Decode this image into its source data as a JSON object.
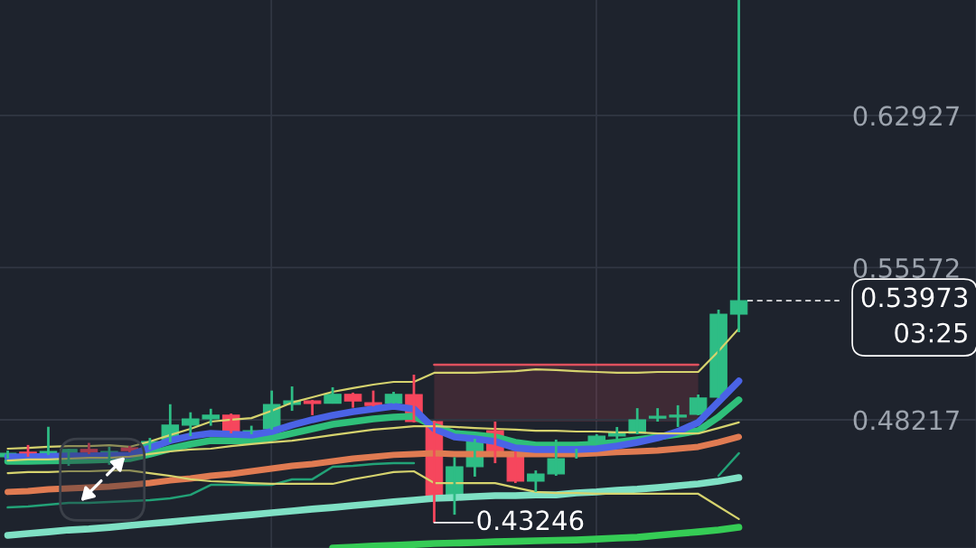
{
  "chart_data": {
    "type": "candlestick",
    "categories": [
      null,
      null,
      null,
      null,
      null,
      null,
      null,
      null,
      null,
      null,
      null,
      null,
      null,
      null,
      null,
      null,
      null,
      null,
      null,
      null,
      null,
      null,
      null,
      null,
      null,
      null,
      null,
      null,
      null,
      null,
      null,
      null,
      null,
      null,
      null,
      null,
      null
    ],
    "ohlc": [
      [
        0.4643,
        0.4673,
        0.4634,
        0.466
      ],
      [
        0.4665,
        0.47,
        0.4643,
        0.4647
      ],
      [
        0.4656,
        0.4788,
        0.4652,
        0.4669
      ],
      [
        0.4662,
        0.4682,
        0.4599,
        0.4679
      ],
      [
        0.4679,
        0.471,
        0.4656,
        0.4665
      ],
      [
        0.466,
        0.4691,
        0.4604,
        0.4669
      ],
      [
        0.4686,
        0.4695,
        0.4665,
        0.4673
      ],
      [
        0.4682,
        0.4734,
        0.4678,
        0.4717
      ],
      [
        0.4717,
        0.4897,
        0.4713,
        0.4796
      ],
      [
        0.4796,
        0.4858,
        0.4743,
        0.4826
      ],
      [
        0.4826,
        0.4875,
        0.4793,
        0.4844
      ],
      [
        0.4844,
        0.4852,
        0.4756,
        0.4761
      ],
      [
        0.4756,
        0.4793,
        0.4752,
        0.4769
      ],
      [
        0.4778,
        0.4963,
        0.4774,
        0.4896
      ],
      [
        0.4896,
        0.4983,
        0.4865,
        0.4913
      ],
      [
        0.4913,
        0.4918,
        0.4844,
        0.49
      ],
      [
        0.4902,
        0.4979,
        0.49,
        0.4945
      ],
      [
        0.4945,
        0.4953,
        0.488,
        0.4913
      ],
      [
        0.4904,
        0.4963,
        0.4887,
        0.4891
      ],
      [
        0.4902,
        0.4957,
        0.49,
        0.4945
      ],
      [
        0.4944,
        0.504,
        0.4809,
        0.4813
      ],
      [
        0.4813,
        0.4817,
        0.43246,
        0.4451
      ],
      [
        0.4451,
        0.4641,
        0.4363,
        0.4595
      ],
      [
        0.4595,
        0.473,
        0.4547,
        0.4726
      ],
      [
        0.4769,
        0.4813,
        0.4612,
        0.466
      ],
      [
        0.466,
        0.4669,
        0.4516,
        0.4525
      ],
      [
        0.4525,
        0.4577,
        0.4473,
        0.456
      ],
      [
        0.456,
        0.4726,
        0.4551,
        0.4634
      ],
      [
        0.4656,
        0.4682,
        0.4634,
        0.4673
      ],
      [
        0.4713,
        0.4752,
        0.4704,
        0.4743
      ],
      [
        0.4743,
        0.4787,
        0.4726,
        0.4761
      ],
      [
        0.4756,
        0.4878,
        0.4752,
        0.4822
      ],
      [
        0.483,
        0.4878,
        0.4813,
        0.4839
      ],
      [
        0.4835,
        0.4892,
        0.4787,
        0.4844
      ],
      [
        0.4848,
        0.4944,
        0.4844,
        0.4927
      ],
      [
        0.4931,
        0.5354,
        0.4927,
        0.5332
      ],
      [
        0.5332,
        0.6851,
        0.5245,
        0.53973
      ]
    ],
    "colors": [
      "#2ebd85",
      "#f6465d",
      "#2ebd85",
      "#2ebd85",
      "#f6465d",
      "#2ebd85",
      "#f6465d",
      "#2ebd85",
      "#2ebd85",
      "#2ebd85",
      "#2ebd85",
      "#f6465d",
      "#2ebd85",
      "#2ebd85",
      "#2ebd85",
      "#f6465d",
      "#2ebd85",
      "#f6465d",
      "#f6465d",
      "#2ebd85",
      "#f6465d",
      "#f6465d",
      "#2ebd85",
      "#2ebd85",
      "#f6465d",
      "#f6465d",
      "#2ebd85",
      "#2ebd85",
      "#2ebd85",
      "#2ebd85",
      "#2ebd85",
      "#2ebd85",
      "#2ebd85",
      "#2ebd85",
      "#2ebd85",
      "#2ebd85",
      "#2ebd85"
    ],
    "series": [
      {
        "type": "line",
        "color": "#7fe0c4",
        "values": [
          0.4263,
          0.4272,
          0.428,
          0.4289,
          0.4294,
          0.4302,
          0.4311,
          0.432,
          0.4328,
          0.4337,
          0.4346,
          0.4355,
          0.4363,
          0.4372,
          0.4381,
          0.439,
          0.4398,
          0.4407,
          0.4416,
          0.4425,
          0.4433,
          0.4442,
          0.4446,
          0.4451,
          0.4455,
          0.4455,
          0.4459,
          0.4459,
          0.4468,
          0.4473,
          0.4481,
          0.4486,
          0.4494,
          0.4503,
          0.4512,
          0.4525,
          0.4542
        ]
      },
      {
        "type": "line",
        "color": "#35cc55",
        "values": [
          null,
          null,
          null,
          null,
          null,
          null,
          null,
          null,
          null,
          null,
          null,
          null,
          null,
          null,
          null,
          null,
          0.4202,
          0.4206,
          0.4211,
          0.4215,
          0.4219,
          0.4224,
          0.4226,
          0.4228,
          0.4232,
          0.4234,
          0.4237,
          0.4239,
          0.4241,
          0.4245,
          0.425,
          0.4254,
          0.4263,
          0.4272,
          0.428,
          0.4289,
          0.4302
        ]
      },
      {
        "type": "line",
        "color": "#e07b52",
        "values": [
          0.4473,
          0.4477,
          0.4486,
          0.449,
          0.4494,
          0.4499,
          0.4507,
          0.4516,
          0.4529,
          0.4538,
          0.4551,
          0.456,
          0.4573,
          0.4586,
          0.4599,
          0.4608,
          0.4621,
          0.4634,
          0.4643,
          0.4652,
          0.4656,
          0.466,
          0.4656,
          0.4656,
          0.4656,
          0.4656,
          0.4656,
          0.4656,
          0.4656,
          0.466,
          0.4665,
          0.4669,
          0.4673,
          0.4682,
          0.4691,
          0.4713,
          0.4739
        ]
      },
      {
        "type": "line",
        "color": "#2fbf7a",
        "values": [
          0.4621,
          0.4621,
          0.4623,
          0.4625,
          0.4627,
          0.463,
          0.4634,
          0.4656,
          0.4682,
          0.4704,
          0.4721,
          0.4721,
          0.4721,
          0.4734,
          0.4756,
          0.4778,
          0.48,
          0.4813,
          0.4826,
          0.4835,
          0.4839,
          0.4791,
          0.4756,
          0.4748,
          0.4739,
          0.4713,
          0.4699,
          0.4699,
          0.4699,
          0.4704,
          0.4713,
          0.4726,
          0.4739,
          0.4752,
          0.4769,
          0.4835,
          0.4918
        ]
      },
      {
        "type": "line",
        "color": "#4a63e6",
        "values": [
          0.4643,
          0.4643,
          0.4645,
          0.4647,
          0.4647,
          0.4649,
          0.4651,
          0.4686,
          0.4721,
          0.4743,
          0.4756,
          0.4752,
          0.4748,
          0.4765,
          0.4796,
          0.4822,
          0.4844,
          0.4861,
          0.4874,
          0.4887,
          0.4874,
          0.4778,
          0.4739,
          0.473,
          0.4717,
          0.4686,
          0.4678,
          0.4678,
          0.4678,
          0.4682,
          0.4695,
          0.4713,
          0.4734,
          0.4765,
          0.4809,
          0.4909,
          0.5009
        ]
      },
      {
        "type": "line",
        "color": "#e0505e",
        "values": [
          null,
          null,
          null,
          null,
          null,
          null,
          null,
          null,
          null,
          null,
          null,
          null,
          null,
          null,
          null,
          null,
          null,
          null,
          null,
          null,
          null,
          0.5088,
          0.5088,
          0.5088,
          0.5088,
          0.5088,
          0.5088,
          0.5088,
          0.5088,
          0.5088,
          0.5088,
          0.5088,
          0.5088,
          0.5088,
          0.5088,
          null,
          null
        ],
        "lower": [
          null,
          null,
          null,
          null,
          null,
          null,
          null,
          null,
          null,
          null,
          null,
          null,
          null,
          null,
          null,
          null,
          null,
          null,
          null,
          null,
          null,
          0.4813,
          0.4813,
          0.4813,
          0.4813,
          0.4813,
          0.4813,
          0.4813,
          0.4813,
          0.4813,
          0.4813,
          0.4813,
          0.4813,
          0.4813,
          0.4813,
          null,
          null
        ],
        "upper": [
          null,
          null,
          null,
          null,
          null,
          null,
          null,
          null,
          null,
          null,
          null,
          null,
          null,
          null,
          null,
          null,
          null,
          null,
          null,
          null,
          null,
          0.5088,
          0.5088,
          0.5088,
          0.5088,
          0.5088,
          0.5088,
          0.5088,
          0.5088,
          0.5088,
          0.5088,
          0.5088,
          0.5088,
          0.5088,
          0.5088,
          null,
          null
        ]
      },
      {
        "type": "line",
        "color": "#22a277",
        "values": [
          0.4398,
          0.4403,
          0.4411,
          0.442,
          0.442,
          0.4425,
          0.4429,
          0.4433,
          0.4442,
          0.4459,
          0.4507,
          0.4507,
          0.4507,
          0.4507,
          0.4534,
          0.4534,
          0.4595,
          0.4599,
          0.4608,
          0.4612,
          0.4612,
          null,
          null,
          null,
          null,
          null,
          null,
          null,
          null,
          null,
          null,
          null,
          null,
          null,
          null,
          0.4551,
          0.466
        ]
      },
      {
        "type": "line",
        "color": "#d6d36e",
        "values": [
          0.4682,
          0.4686,
          0.4691,
          0.4695,
          0.4695,
          0.4699,
          0.4691,
          0.4717,
          0.4748,
          0.4778,
          0.4813,
          0.4822,
          0.483,
          0.4865,
          0.4905,
          0.4931,
          0.4957,
          0.4975,
          0.4992,
          0.5005,
          0.5005,
          0.5049,
          0.5049,
          0.5049,
          0.5053,
          0.5057,
          0.5066,
          0.5062,
          0.5057,
          0.5053,
          0.5049,
          0.5049,
          0.5053,
          0.5053,
          0.5053,
          0.5153,
          0.5263
        ]
      },
      {
        "type": "line",
        "color": "#d6d36e",
        "values": [
          0.4625,
          0.463,
          0.463,
          0.4634,
          0.4638,
          0.4638,
          0.4643,
          0.4656,
          0.4669,
          0.4678,
          0.4682,
          0.4695,
          0.4704,
          0.4713,
          0.4721,
          0.4734,
          0.4748,
          0.4761,
          0.4774,
          0.4782,
          0.4791,
          0.4791,
          0.4787,
          0.4782,
          0.4778,
          0.4774,
          0.4769,
          0.4769,
          0.4765,
          0.4765,
          0.4761,
          0.4761,
          0.4756,
          0.4756,
          0.4756,
          0.4782,
          0.4809
        ]
      },
      {
        "type": "line",
        "color": "#d6d36e",
        "values": [
          0.4564,
          0.4569,
          0.4569,
          0.4573,
          0.4573,
          0.4577,
          0.4577,
          0.4564,
          0.4551,
          0.4534,
          0.4525,
          0.4521,
          0.4516,
          0.4512,
          0.4512,
          0.4512,
          0.4512,
          0.4534,
          0.4551,
          0.4569,
          0.4573,
          0.4516,
          0.4516,
          0.4516,
          0.4516,
          0.4494,
          0.4473,
          0.4468,
          0.4468,
          0.4464,
          0.4464,
          0.4464,
          0.4464,
          0.4464,
          0.4464,
          0.4403,
          0.4342
        ]
      }
    ],
    "ylim": [
      0.4202,
      0.6851
    ],
    "yticks": [
      0.48217,
      0.55572,
      0.62927
    ],
    "grid": true,
    "tick_labels": "y",
    "line_style": "solid",
    "ref_lines": [
      {
        "axis": "y",
        "value": 0.53973,
        "label": "0.53973\n03:25",
        "line_style": "dashed",
        "color": "#ffffff"
      }
    ],
    "annotations": [
      "0.43246"
    ]
  }
}
